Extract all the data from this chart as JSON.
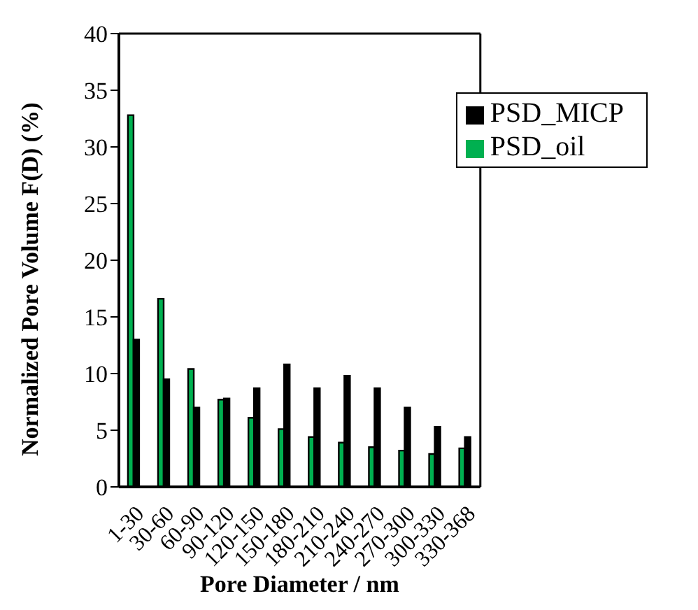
{
  "chart_data": {
    "type": "bar",
    "xlabel": "Pore Diameter / nm",
    "ylabel": "Normalized Pore Volume F(D) (%)",
    "categories": [
      "1-30",
      "30-60",
      "60-90",
      "90-120",
      "120-150",
      "150-180",
      "180-210",
      "210-240",
      "240-270",
      "270-300",
      "300-330",
      "330-368"
    ],
    "series": [
      {
        "name": "PSD_oil",
        "color": "#00b050",
        "values": [
          32.8,
          16.6,
          10.4,
          7.7,
          6.1,
          5.1,
          4.4,
          3.9,
          3.5,
          3.2,
          2.9,
          3.4
        ]
      },
      {
        "name": "PSD_MICP",
        "color": "#000000",
        "values": [
          13.0,
          9.5,
          7.0,
          7.8,
          8.7,
          10.8,
          8.7,
          9.8,
          8.7,
          7.0,
          5.3,
          4.4
        ]
      }
    ],
    "ylim": [
      0,
      40
    ],
    "yticks": [
      0,
      5,
      10,
      15,
      20,
      25,
      30,
      35,
      40
    ],
    "grid": false,
    "legend": "top right"
  }
}
